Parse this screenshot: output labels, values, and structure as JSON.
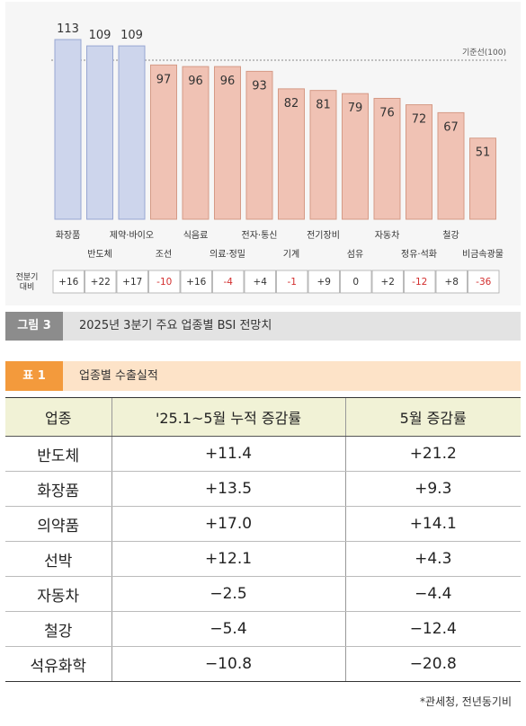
{
  "chart_data": {
    "type": "bar",
    "categories": [
      "화장품",
      "반도체",
      "제약·바이오",
      "조선",
      "식음료",
      "의료·정밀",
      "전자·통신",
      "기계",
      "전기장비",
      "섬유",
      "자동차",
      "정유·석화",
      "철강",
      "비금속광물"
    ],
    "values": [
      113,
      109,
      109,
      97,
      96,
      96,
      93,
      82,
      81,
      79,
      76,
      72,
      67,
      51
    ],
    "change_label": "전분기 대비",
    "changes": [
      "+16",
      "+22",
      "+17",
      "-10",
      "+16",
      "-4",
      "+4",
      "-1",
      "+9",
      "0",
      "+2",
      "-12",
      "+8",
      "-36"
    ],
    "reference_line": {
      "value": 100,
      "label": "기준선(100)"
    },
    "colors": {
      "above": "#cdd5ec",
      "above_border": "#98a6d2",
      "below": "#f0c2b4",
      "below_border": "#d59a86",
      "negative_text": "#d32f2f"
    }
  },
  "figure_caption": {
    "tag": "그림 3",
    "text": "2025년 3분기 주요 업종별 BSI 전망치"
  },
  "table_caption": {
    "tag": "표 1",
    "text": "업종별 수출실적"
  },
  "table": {
    "headers": [
      "업종",
      "'25.1~5월 누적 증감률",
      "5월 증감률"
    ],
    "rows": [
      [
        "반도체",
        "+11.4",
        "+21.2"
      ],
      [
        "화장품",
        "+13.5",
        "+9.3"
      ],
      [
        "의약품",
        "+17.0",
        "+14.1"
      ],
      [
        "선박",
        "+12.1",
        "+4.3"
      ],
      [
        "자동차",
        "−2.5",
        "−4.4"
      ],
      [
        "철강",
        "−5.4",
        "−12.4"
      ],
      [
        "석유화학",
        "−10.8",
        "−20.8"
      ]
    ]
  },
  "source_note": "*관세청, 전년동기비"
}
